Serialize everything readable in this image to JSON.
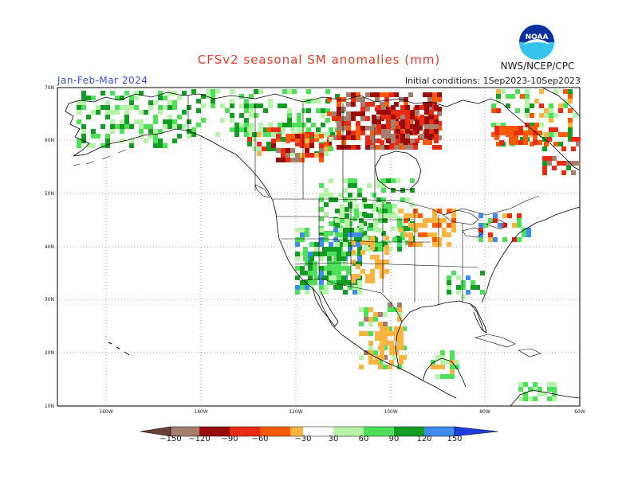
{
  "header": {
    "title": "CFSv2 seasonal SM anomalies (mm)",
    "period": "Jan-Feb-Mar 2024",
    "initial_conditions": "Initial conditions: 1Sep2023-10Sep2023",
    "org": "NWS/NCEP/CPC",
    "logo_text": "NOAA"
  },
  "map": {
    "lat_labels": [
      "70N",
      "60N",
      "50N",
      "40N",
      "30N",
      "20N",
      "10N"
    ],
    "lon_labels": [
      "160W",
      "140W",
      "120W",
      "100W",
      "80W",
      "60W"
    ]
  },
  "colorbar": {
    "labels": [
      "−150",
      "−120",
      "−90",
      "−60",
      "−30",
      "30",
      "60",
      "90",
      "120",
      "150"
    ],
    "colors": {
      "neg_ext": "#6b3f35",
      "neg150": "#a57e6e",
      "neg120": "#9a0c0c",
      "neg90": "#e72b14",
      "neg60": "#f85a08",
      "neg30": "#f9b441",
      "neutral": "#ffffff",
      "pos30": "#b6f3a8",
      "pos60": "#4ee05a",
      "pos90": "#159c25",
      "pos120": "#3f8bf0",
      "pos150": "#1b3fd8"
    }
  }
}
